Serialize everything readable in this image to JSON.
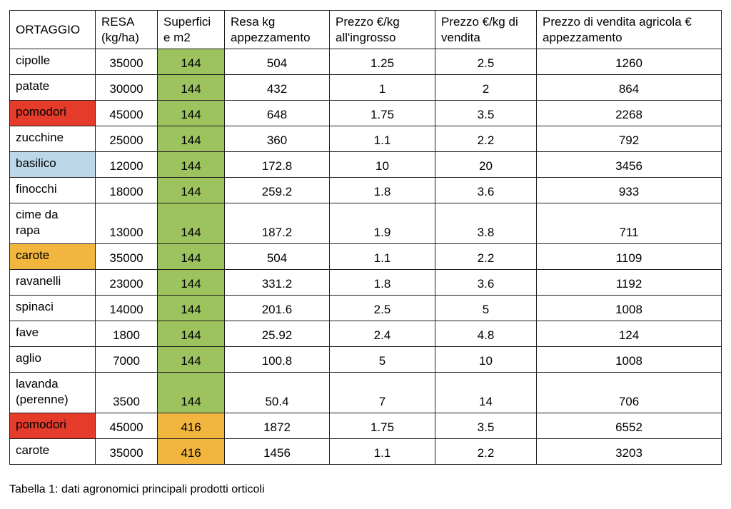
{
  "colors": {
    "red": "#e43b2b",
    "green": "#9cc35e",
    "orange": "#f2b53e",
    "blue": "#bdd7ea"
  },
  "table": {
    "headers": [
      {
        "line1": "ORTAGGIO"
      },
      {
        "line1": "RESA",
        "line2": "(kg/ha)"
      },
      {
        "line1": "Superfici",
        "line2": "e m2"
      },
      {
        "line1": "Resa kg",
        "line2": "appezzamento"
      },
      {
        "line1": "Prezzo €/kg",
        "line2": "all'ingrosso"
      },
      {
        "line1": "Prezzo €/kg di",
        "line2": "vendita"
      },
      {
        "line1": "Prezzo di vendita agricola €",
        "line2": "appezzamento"
      }
    ],
    "rows": [
      {
        "cells": [
          "cipolle",
          "35000",
          "144",
          "504",
          "1.25",
          "2.5",
          "1260"
        ],
        "bg": {
          "2": "green"
        }
      },
      {
        "cells": [
          "patate",
          "30000",
          "144",
          "432",
          "1",
          "2",
          "864"
        ],
        "bg": {
          "2": "green"
        }
      },
      {
        "cells": [
          "pomodori",
          "45000",
          "144",
          "648",
          "1.75",
          "3.5",
          "2268"
        ],
        "bg": {
          "0": "red",
          "2": "green"
        }
      },
      {
        "cells": [
          "zucchine",
          "25000",
          "144",
          "360",
          "1.1",
          "2.2",
          "792"
        ],
        "bg": {
          "2": "green"
        }
      },
      {
        "cells": [
          "basilico",
          "12000",
          "144",
          "172.8",
          "10",
          "20",
          "3456"
        ],
        "bg": {
          "0": "blue",
          "2": "green"
        }
      },
      {
        "cells": [
          "finocchi",
          "18000",
          "144",
          "259.2",
          "1.8",
          "3.6",
          "933"
        ],
        "bg": {
          "2": "green"
        }
      },
      {
        "cells": [
          "cime da rapa",
          "13000",
          "144",
          "187.2",
          "1.9",
          "3.8",
          "711"
        ],
        "bg": {
          "2": "green"
        },
        "multiline": {
          "0": [
            "cime da",
            "rapa"
          ]
        }
      },
      {
        "cells": [
          "carote",
          "35000",
          "144",
          "504",
          "1.1",
          "2.2",
          "1109"
        ],
        "bg": {
          "0": "orange",
          "2": "green"
        }
      },
      {
        "cells": [
          "ravanelli",
          "23000",
          "144",
          "331.2",
          "1.8",
          "3.6",
          "1192"
        ],
        "bg": {
          "2": "green"
        }
      },
      {
        "cells": [
          "spinaci",
          "14000",
          "144",
          "201.6",
          "2.5",
          "5",
          "1008"
        ],
        "bg": {
          "2": "green"
        }
      },
      {
        "cells": [
          "fave",
          "1800",
          "144",
          "25.92",
          "2.4",
          "4.8",
          "124"
        ],
        "bg": {
          "2": "green"
        }
      },
      {
        "cells": [
          "aglio",
          "7000",
          "144",
          "100.8",
          "5",
          "10",
          "1008"
        ],
        "bg": {
          "2": "green"
        }
      },
      {
        "cells": [
          "lavanda (perenne)",
          "3500",
          "144",
          "50.4",
          "7",
          "14",
          "706"
        ],
        "bg": {
          "2": "green"
        },
        "multiline": {
          "0": [
            "lavanda",
            "(perenne)"
          ]
        }
      },
      {
        "cells": [
          "pomodori",
          "45000",
          "416",
          "1872",
          "1.75",
          "3.5",
          "6552"
        ],
        "bg": {
          "0": "red",
          "2": "orange"
        }
      },
      {
        "cells": [
          "carote",
          "35000",
          "416",
          "1456",
          "1.1",
          "2.2",
          "3203"
        ],
        "bg": {
          "2": "orange"
        }
      }
    ]
  },
  "caption": "Tabella 1: dati agronomici principali prodotti orticoli"
}
